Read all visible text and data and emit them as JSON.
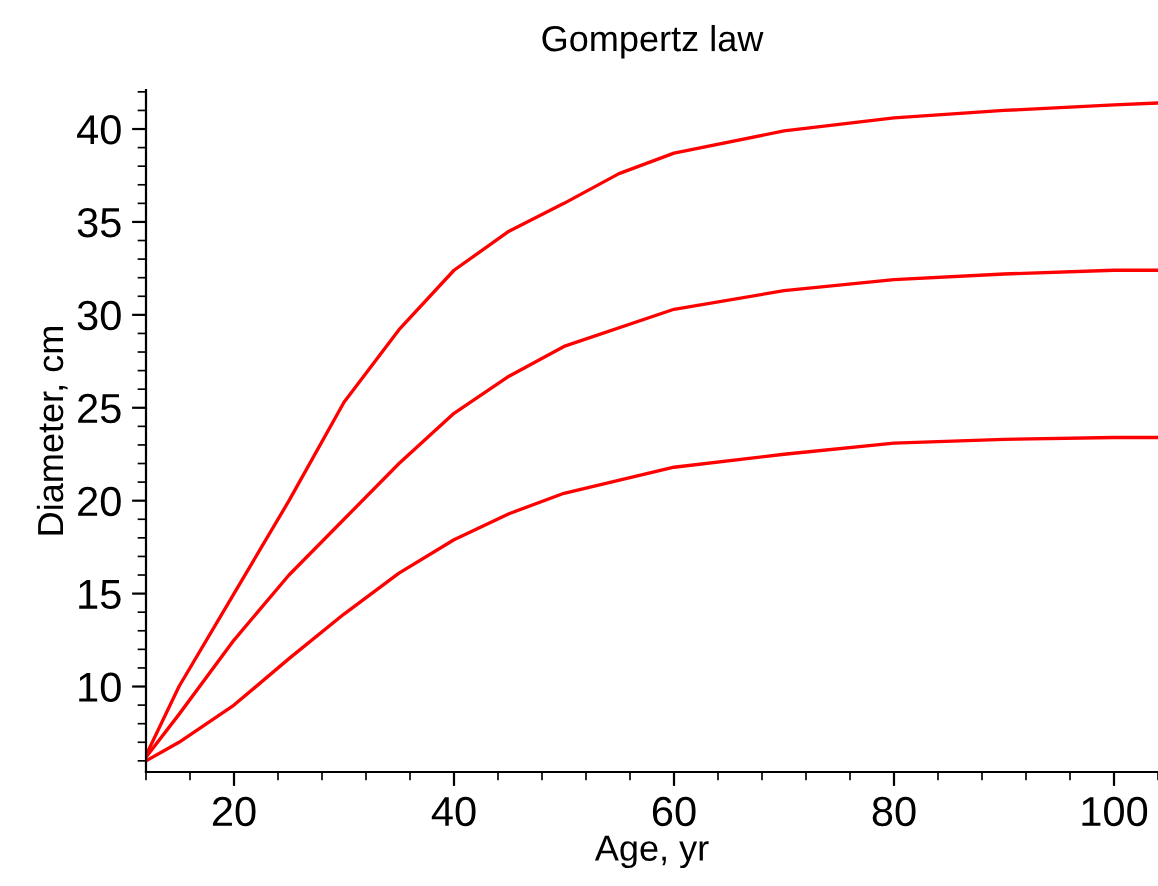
{
  "chart_data": {
    "type": "line",
    "title": "Gompertz law",
    "xlabel": "Age, yr",
    "ylabel": "Diameter, cm",
    "xlim": [
      12,
      104
    ],
    "xticks": [
      20,
      40,
      60,
      80,
      100
    ],
    "ylim": [
      5.4,
      42.1
    ],
    "yticks": [
      10,
      15,
      20,
      25,
      30,
      35,
      40
    ],
    "marker": "none",
    "line_style": "solid",
    "series": [
      {
        "color": "#ff0000",
        "x": [
          12,
          15,
          20,
          25,
          30,
          35,
          40,
          45,
          50,
          55,
          60,
          70,
          80,
          90,
          100,
          104
        ],
        "values": [
          6.3,
          10,
          15,
          20,
          25.3,
          29.2,
          32.4,
          34.5,
          36,
          37.6,
          38.7,
          39.9,
          40.6,
          41,
          41.3,
          41.4
        ]
      },
      {
        "color": "#ff0000",
        "x": [
          12,
          15,
          20,
          25,
          30,
          35,
          40,
          45,
          50,
          60,
          70,
          80,
          90,
          100,
          104
        ],
        "values": [
          6.2,
          8.5,
          12.5,
          16,
          19,
          22,
          24.7,
          26.7,
          28.3,
          30.3,
          31.3,
          31.9,
          32.2,
          32.4,
          32.4
        ]
      },
      {
        "color": "#ff0000",
        "x": [
          12,
          15,
          20,
          25,
          30,
          35,
          40,
          45,
          50,
          60,
          70,
          80,
          90,
          100,
          104
        ],
        "values": [
          6,
          7,
          9,
          11.5,
          13.9,
          16.1,
          17.9,
          19.3,
          20.4,
          21.8,
          22.5,
          23.1,
          23.3,
          23.4,
          23.4
        ]
      }
    ]
  }
}
